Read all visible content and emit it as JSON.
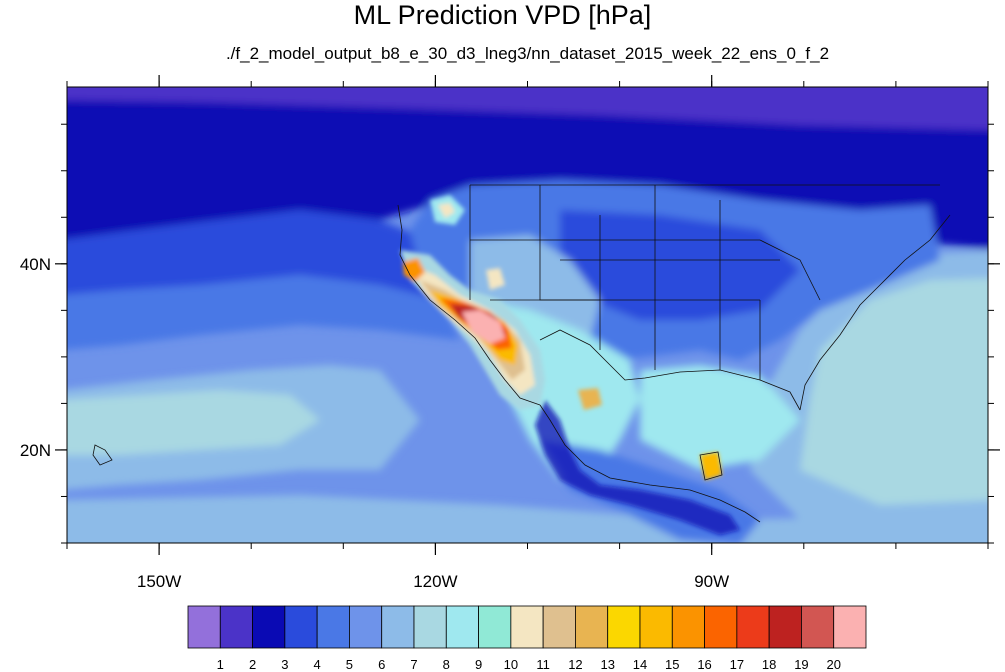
{
  "title": "ML Prediction VPD [hPa]",
  "subtitle": "./f_2_model_output_b8_e_30_d3_lneg3/nn_dataset_2015_week_22_ens_0_f_2",
  "map": {
    "lon_range": [
      -160,
      -60
    ],
    "lat_range": [
      10,
      59
    ],
    "x_ticks": [
      {
        "lon": -150,
        "label": "150W"
      },
      {
        "lon": -120,
        "label": "120W"
      },
      {
        "lon": -90,
        "label": "90W"
      }
    ],
    "y_ticks": [
      {
        "lat": 40,
        "label": "40N"
      },
      {
        "lat": 20,
        "label": "20N"
      }
    ]
  },
  "colorbar": {
    "colors": [
      "#9370db",
      "#4b33c8",
      "#0a0ab4",
      "#2a4bdc",
      "#4a78e6",
      "#6e93ea",
      "#8dbbe8",
      "#a9d8e2",
      "#9fe8ef",
      "#90e9d6",
      "#f4e6c2",
      "#dfc08f",
      "#e8b451",
      "#fbd700",
      "#fbba00",
      "#fb9300",
      "#fb6400",
      "#ec3b1a",
      "#bd2220",
      "#d25652",
      "#fbb1b1"
    ],
    "labels": [
      "1",
      "2",
      "3",
      "4",
      "5",
      "6",
      "7",
      "8",
      "9",
      "10",
      "11",
      "12",
      "13",
      "14",
      "15",
      "16",
      "17",
      "18",
      "19",
      "20"
    ]
  }
}
